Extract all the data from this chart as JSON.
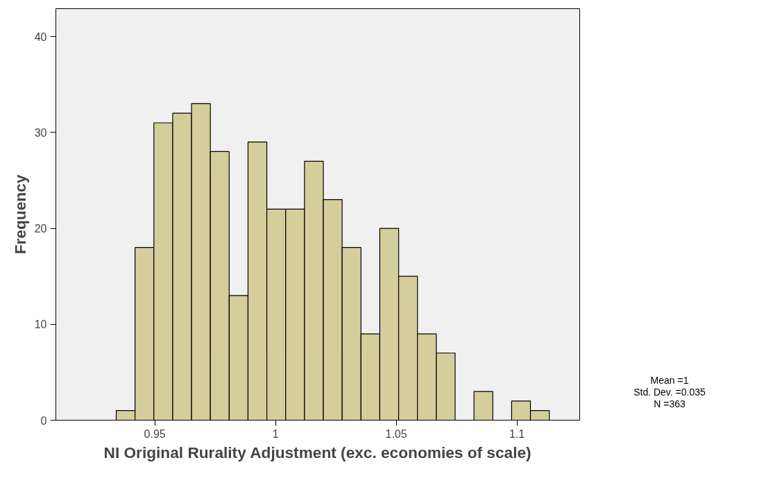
{
  "chart_data": {
    "type": "histogram",
    "xlabel": "NI Original Rurality Adjustment (exc. economies of scale)",
    "ylabel": "Frequency",
    "bins": [
      0.934,
      0.9418,
      0.9496,
      0.9574,
      0.9652,
      0.973,
      0.9808,
      0.9886,
      0.9964,
      1.0042,
      1.012,
      1.0198,
      1.0276,
      1.0354,
      1.0432,
      1.051,
      1.0588,
      1.0666,
      1.0744,
      1.0822,
      1.09,
      1.0978,
      1.1056,
      1.1134
    ],
    "values": [
      1,
      18,
      31,
      32,
      33,
      28,
      13,
      29,
      22,
      22,
      27,
      23,
      18,
      9,
      20,
      15,
      9,
      7,
      0,
      3,
      0,
      2,
      1
    ],
    "color": "#d3ce9b",
    "xlim": [
      0.909,
      1.126
    ],
    "xticks": [
      0.95,
      1,
      1.05,
      1.1
    ],
    "ylim": [
      0,
      42.9
    ],
    "yticks": [
      0,
      10,
      20,
      30,
      40
    ],
    "grid": false,
    "annotations": [
      "Mean =1",
      "Std. Dev. =0.035",
      "N =363"
    ]
  }
}
